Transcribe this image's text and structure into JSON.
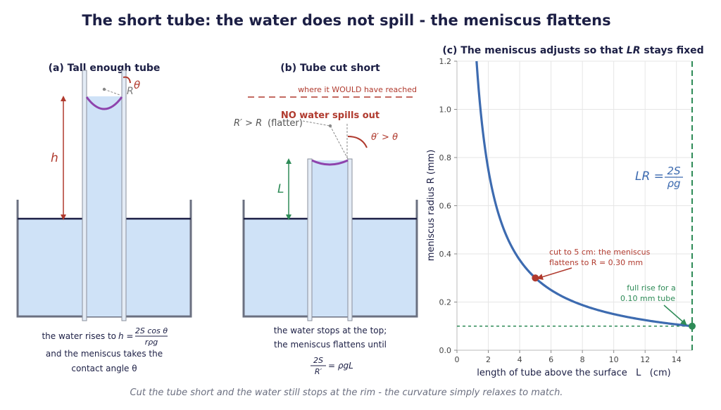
{
  "title": "The short tube: the water does not spill - the meniscus flattens",
  "footer": "Cut the tube short and the water still stops at the rim - the curvature simply relaxes to match.",
  "colors": {
    "dark": "#1c1f45",
    "red": "#b03a2e",
    "green": "#2e8b57",
    "purple": "#8e44ad",
    "blue": "#3d6bb0",
    "water": "#cfe2f7",
    "tank": "#6b7080",
    "grey": "#7a7a7a"
  },
  "panel_a": {
    "title": "(a) Tall enough tube",
    "label_h": "h",
    "label_theta": "θ",
    "label_R": "R",
    "caption_line1": "the water rises to",
    "formula": {
      "lhs": "h =",
      "num": "2S cos θ",
      "den": "rρg"
    },
    "caption_line2": "and the meniscus takes the",
    "caption_line3": "contact angle θ"
  },
  "panel_b": {
    "title": "(b) Tube cut short",
    "would_reached": "where it WOULD have reached",
    "no_spill": "NO water spills out",
    "label_Rprime": "R′ > R",
    "label_flatter": "(flatter)",
    "label_thetaprime": "θ′ > θ",
    "label_L": "L",
    "caption_line1": "the water stops at the top;",
    "caption_line2": "the meniscus flattens until",
    "formula": {
      "num": "2S",
      "den": "R′",
      "rhs": "= ρgL"
    }
  },
  "panel_c": {
    "title_prefix": "(c) The meniscus adjusts so that ",
    "title_var": "LR",
    "title_suffix": " stays fixed",
    "law": {
      "lhs": "LR =",
      "num": "2S",
      "den": "ρg"
    },
    "annotation_red": [
      "cut to 5 cm: the meniscus",
      "flattens to R = 0.30 mm"
    ],
    "annotation_green": [
      "full rise for a",
      "0.10 mm tube"
    ]
  },
  "chart_data": {
    "type": "line",
    "title": "(c) The meniscus adjusts so that LR stays fixed",
    "xlabel": "length of tube above the surface   L   (cm)",
    "ylabel": "meniscus radius   R   (mm)",
    "xlim": [
      0,
      15
    ],
    "ylim": [
      0,
      1.2
    ],
    "xticks": [
      0,
      2,
      4,
      6,
      8,
      10,
      12,
      14
    ],
    "yticks": [
      0.0,
      0.2,
      0.4,
      0.6,
      0.8,
      1.0,
      1.2
    ],
    "ytick_labels": [
      "0.0",
      "0.2",
      "0.4",
      "0.6",
      "0.8",
      "1.0",
      "1.2"
    ],
    "grid": true,
    "curve": {
      "relation": "R = 1.5 / L",
      "LR_product": 1.5,
      "x_start": 1.25,
      "x_end": 15
    },
    "points": [
      {
        "x": 5,
        "y": 0.3,
        "color": "red"
      },
      {
        "x": 15,
        "y": 0.1,
        "color": "green"
      }
    ],
    "reference_lines": [
      {
        "orientation": "vertical",
        "x": 15,
        "style": "dashed",
        "color": "green"
      },
      {
        "orientation": "horizontal",
        "y": 0.1,
        "style": "dotted",
        "color": "green"
      }
    ]
  }
}
